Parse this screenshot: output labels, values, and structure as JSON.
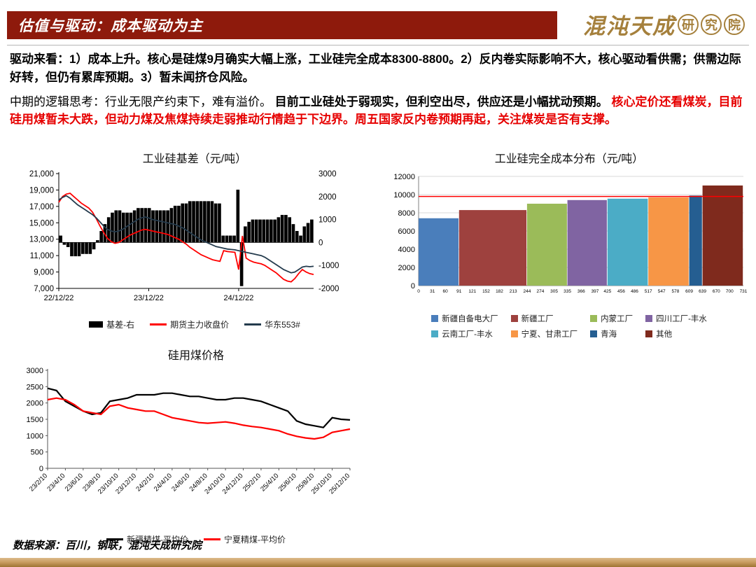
{
  "theme": {
    "header_bg": "#8e1a0c",
    "accent_red": "#e60000",
    "gold": "#a5803c",
    "ref_line_red": "#ff0000"
  },
  "header": {
    "title": "估值与驱动：成本驱动为主",
    "logo_main": "混沌天成",
    "logo_sub_chars": [
      "研",
      "究",
      "院"
    ]
  },
  "analysis": {
    "para1": "驱动来看：1）成本上升。核心是硅煤9月确实大幅上涨，工业硅完全成本8300-8800。2）反内卷实际影响不大，核心驱动看供需；供需边际好转，但仍有累库预期。3）暂未闻挤仓风险。",
    "para2_intro": "中期的逻辑思考：行业无限产约束下，难有溢价。",
    "para2_emphasis": "目前工业硅处于弱现实，但利空出尽，供应还是小幅扰动预期。",
    "para2_red": "核心定价还看煤炭，目前硅用煤暂未大跌，但动力煤及焦煤持续走弱推动行情趋于下边界。周五国家反内卷预期再起，关注煤炭是否有支撑。"
  },
  "footer": {
    "source": "数据来源：百川，钢联，混沌天成研究院"
  },
  "chart_data": [
    {
      "type": "combo-bar-line",
      "title": "工业硅基差（元/吨）",
      "x_labels": [
        "22/12/22",
        "23/12/22",
        "24/12/22"
      ],
      "x_label_indices": [
        0,
        24,
        48
      ],
      "left_axis": {
        "min": 7000,
        "max": 21000,
        "step": 2000
      },
      "right_axis": {
        "min": -2000,
        "max": 3000,
        "step": 1000
      },
      "grid": false,
      "legend_position": "bottom",
      "series": [
        {
          "name": "基差-右",
          "type": "bar",
          "axis": "right",
          "color": "#000000",
          "values": [
            300,
            -100,
            -200,
            -600,
            -600,
            -600,
            -500,
            -500,
            -500,
            -300,
            100,
            500,
            800,
            1100,
            1300,
            1400,
            1400,
            1300,
            1300,
            1300,
            1400,
            1500,
            1500,
            1500,
            1500,
            1400,
            1400,
            1400,
            1400,
            1400,
            1500,
            1600,
            1600,
            1700,
            1700,
            1800,
            1800,
            1800,
            1800,
            1800,
            1800,
            1800,
            1700,
            1700,
            300,
            300,
            300,
            300,
            2300,
            -1900,
            700,
            900,
            1000,
            1000,
            1000,
            1000,
            1000,
            1000,
            1000,
            1100,
            1200,
            1200,
            1100,
            800,
            500,
            300,
            700,
            850,
            1000
          ]
        },
        {
          "name": "期货主力收盘价",
          "type": "line",
          "axis": "left",
          "color": "#ff0000",
          "values": [
            17500,
            18200,
            18500,
            18600,
            18200,
            17800,
            17400,
            17100,
            16800,
            16300,
            15500,
            14600,
            13800,
            13100,
            12700,
            12500,
            12600,
            12900,
            13200,
            13500,
            13700,
            13900,
            14100,
            14200,
            14100,
            14000,
            13900,
            13800,
            13700,
            13600,
            13400,
            13200,
            13000,
            12700,
            12400,
            12000,
            11700,
            11400,
            11100,
            10900,
            10700,
            10500,
            10400,
            10300,
            11600,
            11500,
            11450,
            11400,
            9300,
            13400,
            10700,
            10400,
            10200,
            10100,
            10000,
            9800,
            9500,
            9200,
            8900,
            8500,
            8100,
            7900,
            7800,
            8200,
            8800,
            9300,
            9000,
            8800,
            8700
          ]
        },
        {
          "name": "华东553#",
          "type": "line",
          "axis": "left",
          "color": "#243b4d",
          "values": [
            17800,
            18100,
            18300,
            18000,
            17600,
            17200,
            16900,
            16600,
            16300,
            16000,
            15600,
            15100,
            14600,
            14200,
            14000,
            13900,
            14000,
            14200,
            14500,
            14800,
            15100,
            15400,
            15600,
            15700,
            15600,
            15400,
            15300,
            15200,
            15100,
            15000,
            14900,
            14800,
            14600,
            14400,
            14100,
            13800,
            13500,
            13200,
            12900,
            12700,
            12500,
            12300,
            12100,
            12000,
            11900,
            11800,
            11750,
            11700,
            11600,
            11500,
            11400,
            11300,
            11200,
            11100,
            11000,
            10800,
            10500,
            10200,
            9900,
            9600,
            9300,
            9100,
            8900,
            9000,
            9300,
            9600,
            9700,
            9650,
            9700
          ]
        }
      ]
    },
    {
      "type": "bar",
      "title": "工业硅完全成本分布（元/吨）",
      "y_axis": {
        "min": 0,
        "max": 12000,
        "step": 2000
      },
      "x_max": 731,
      "x_ticks": [
        0,
        31,
        60,
        91,
        121,
        152,
        182,
        213,
        244,
        274,
        305,
        335,
        366,
        397,
        425,
        456,
        486,
        517,
        547,
        578,
        609,
        639,
        670,
        700,
        731
      ],
      "ref_line": 9800,
      "ref_line_color": "#ff0000",
      "grid": true,
      "legend_position": "bottom",
      "series": [
        {
          "name": "新疆自备电大厂",
          "color": "#4a7ebb",
          "span": [
            0,
            91
          ],
          "value": 7400
        },
        {
          "name": "新疆工厂",
          "color": "#9e413e",
          "span": [
            91,
            244
          ],
          "value": 8300
        },
        {
          "name": "内蒙工厂",
          "color": "#9bbb59",
          "span": [
            244,
            335
          ],
          "value": 9000
        },
        {
          "name": "四川工厂-丰水",
          "color": "#8064a2",
          "span": [
            335,
            425
          ],
          "value": 9400
        },
        {
          "name": "云南工厂-丰水",
          "color": "#4bacc6",
          "span": [
            425,
            517
          ],
          "value": 9550
        },
        {
          "name": "宁夏、甘肃工厂",
          "color": "#f79646",
          "span": [
            517,
            609
          ],
          "value": 9700
        },
        {
          "name": "青海",
          "color": "#255e91",
          "span": [
            609,
            639
          ],
          "value": 9900
        },
        {
          "name": "其他",
          "color": "#7f2a1d",
          "span": [
            639,
            731
          ],
          "value": 11000
        }
      ]
    },
    {
      "type": "line",
      "title": "硅用煤价格",
      "y_axis": {
        "min": 0,
        "max": 3000,
        "step": 500
      },
      "n_points": 35,
      "x_labels": [
        "23/2/10",
        "23/4/10",
        "23/6/10",
        "23/8/10",
        "23/10/10",
        "23/12/10",
        "24/2/10",
        "24/4/10",
        "24/6/10",
        "24/8/10",
        "24/10/10",
        "24/12/10",
        "25/2/10",
        "25/4/10",
        "25/6/10",
        "25/8/10",
        "25/10/10",
        "25/12/10"
      ],
      "grid": false,
      "legend_position": "bottom",
      "series": [
        {
          "name": "新疆精煤-平均价",
          "color": "#000000",
          "values": [
            2450,
            2380,
            2050,
            1900,
            1750,
            1650,
            1700,
            2050,
            2100,
            2150,
            2250,
            2250,
            2250,
            2300,
            2300,
            2250,
            2200,
            2200,
            2150,
            2100,
            2100,
            2150,
            2150,
            2100,
            2050,
            1950,
            1850,
            1750,
            1450,
            1350,
            1300,
            1250,
            1550,
            1500,
            1480
          ]
        },
        {
          "name": "宁夏精煤-平均价",
          "color": "#ff0000",
          "values": [
            2100,
            2150,
            2100,
            1950,
            1750,
            1700,
            1650,
            1900,
            1950,
            1850,
            1800,
            1750,
            1750,
            1650,
            1550,
            1500,
            1450,
            1400,
            1380,
            1400,
            1420,
            1380,
            1320,
            1280,
            1250,
            1200,
            1150,
            1050,
            980,
            930,
            900,
            950,
            1100,
            1150,
            1200
          ]
        }
      ]
    }
  ]
}
